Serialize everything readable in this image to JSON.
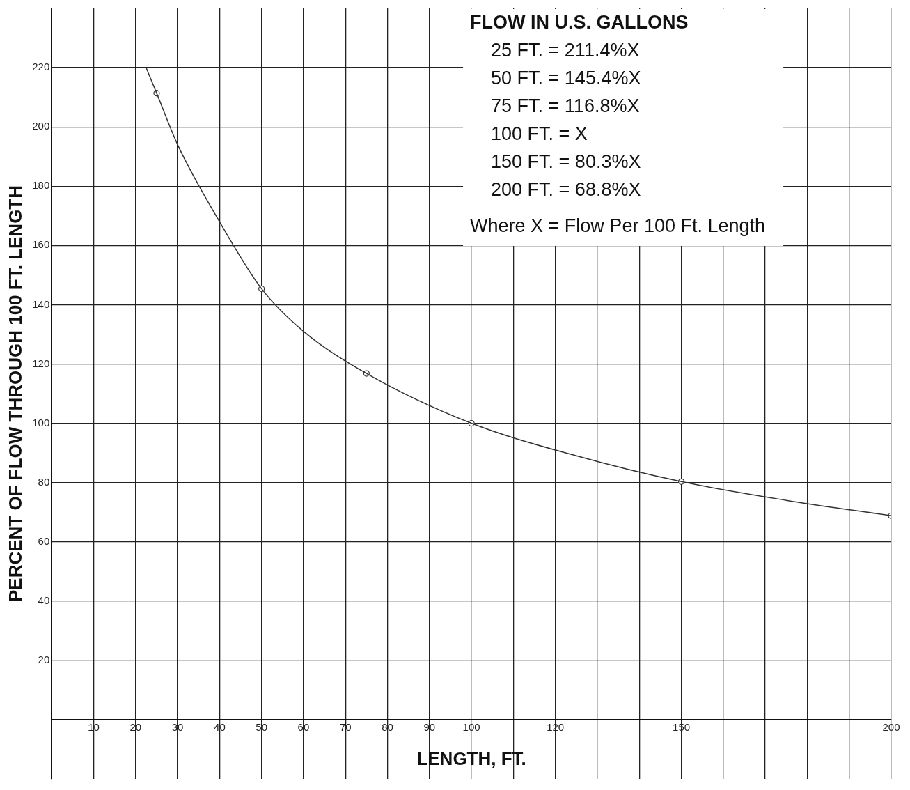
{
  "chart_data": {
    "type": "line",
    "xlabel": "LENGTH, FT.",
    "ylabel": "PERCENT OF FLOW THROUGH 100 FT. LENGTH",
    "xlim": [
      0,
      200
    ],
    "ylim": [
      -20,
      240
    ],
    "xticks": [
      10,
      20,
      30,
      40,
      50,
      60,
      70,
      80,
      90,
      100,
      {
        "value": 110,
        "label": null
      },
      120,
      {
        "value": 130,
        "label": null
      },
      {
        "value": 140,
        "label": null
      },
      150,
      {
        "value": 160,
        "label": null
      },
      {
        "value": 170,
        "label": null
      },
      {
        "value": 180,
        "label": null
      },
      {
        "value": 190,
        "label": null
      },
      200
    ],
    "yticks": [
      {
        "value": 0,
        "label": null
      },
      20,
      40,
      60,
      80,
      100,
      120,
      140,
      160,
      180,
      200,
      220
    ],
    "grid": true,
    "legend": false,
    "series": [
      {
        "type": "line",
        "color": "#333333",
        "marker": "none",
        "x": [
          22.5,
          25,
          30,
          40,
          50,
          60,
          75,
          100,
          125,
          150,
          175,
          200
        ],
        "values": [
          220,
          211.4,
          194,
          168,
          145.4,
          131,
          116.8,
          100,
          89,
          80.3,
          74,
          68.8
        ]
      },
      {
        "type": "scatter",
        "color": "#333333",
        "marker": "circle",
        "x": [
          25,
          50,
          75,
          100,
          150,
          200
        ],
        "values": [
          211.4,
          145.4,
          116.8,
          100,
          80.3,
          68.8
        ]
      }
    ],
    "annotations": [
      "FLOW IN U.S. GALLONS",
      "25 FT. = 211.4%X",
      "50 FT. = 145.4%X",
      "75 FT. = 116.8%X",
      "100 FT. = X",
      "150 FT. = 80.3%X",
      "200 FT. = 68.8%X",
      "Where X = Flow Per 100 Ft. Length"
    ]
  }
}
